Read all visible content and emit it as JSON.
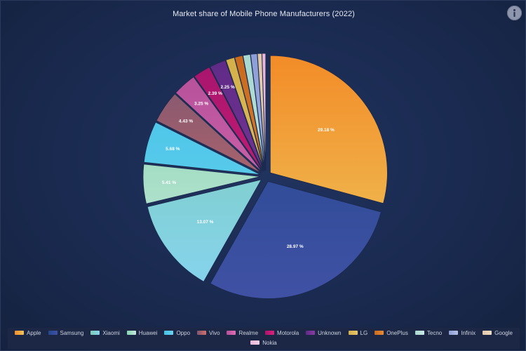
{
  "chart_data": {
    "type": "pie",
    "title": "Market share of Mobile Phone Manufacturers (2022)",
    "unit": "%",
    "slices": [
      {
        "name": "Apple",
        "value": 29.18,
        "label": "29.18 %",
        "colors": [
          "#f28c28",
          "#efc65c"
        ]
      },
      {
        "name": "Samsung",
        "value": 28.97,
        "label": "28.97 %",
        "colors": [
          "#23488e",
          "#4051a4"
        ]
      },
      {
        "name": "Xiaomi",
        "value": 13.07,
        "label": "13.07 %",
        "colors": [
          "#7ccbb3",
          "#86d4f0"
        ]
      },
      {
        "name": "Huawei",
        "value": 5.41,
        "label": "5.41 %",
        "colors": [
          "#85d6b0",
          "#c8e6dc"
        ]
      },
      {
        "name": "Oppo",
        "value": 5.68,
        "label": "5.68 %",
        "colors": [
          "#45c2e6",
          "#6ad2ef"
        ]
      },
      {
        "name": "Vivo",
        "value": 4.43,
        "label": "4.43 %",
        "colors": [
          "#7c5570",
          "#d4706a"
        ]
      },
      {
        "name": "Realme",
        "value": 3.25,
        "label": "3.25 %",
        "colors": [
          "#b24f98",
          "#e06fb5"
        ]
      },
      {
        "name": "Motorola",
        "value": 2.39,
        "label": "2.39 %",
        "colors": [
          "#a5156c",
          "#e0207c"
        ]
      },
      {
        "name": "Unknown",
        "value": 2.25,
        "label": "2.25 %",
        "colors": [
          "#5e2a86",
          "#8a3da0"
        ]
      },
      {
        "name": "LG",
        "value": 1.2,
        "label": "",
        "colors": [
          "#d4b04a",
          "#e6c46a"
        ]
      },
      {
        "name": "OnePlus",
        "value": 1.1,
        "label": "",
        "colors": [
          "#c86a1e",
          "#e88a34"
        ]
      },
      {
        "name": "Tecno",
        "value": 1.0,
        "label": "",
        "colors": [
          "#a8d8d0",
          "#cde8e4"
        ]
      },
      {
        "name": "Infinix",
        "value": 0.9,
        "label": "",
        "colors": [
          "#8d9ed6",
          "#b6c0e6"
        ]
      },
      {
        "name": "Google",
        "value": 0.6,
        "label": "",
        "colors": [
          "#e0c7a8",
          "#f0dcc4"
        ]
      },
      {
        "name": "Nokia",
        "value": 0.5,
        "label": "",
        "colors": [
          "#e8b6d8",
          "#f4cfe6"
        ]
      }
    ],
    "legend_position": "bottom"
  }
}
